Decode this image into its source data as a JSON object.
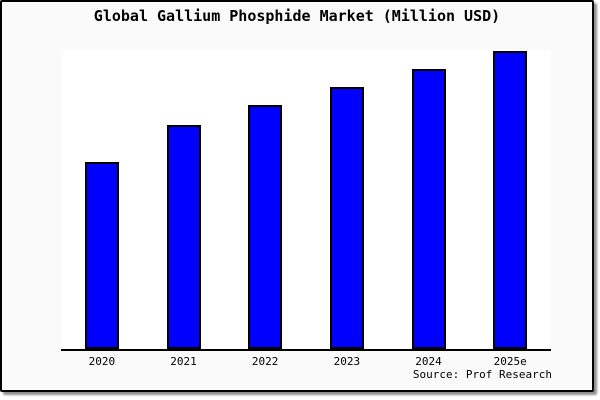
{
  "figure": {
    "title": "Global Gallium Phosphide Market (Million USD)",
    "source": "Source: Prof Research"
  },
  "chart_data": {
    "type": "bar",
    "title": "Global Gallium Phosphide Market (Million USD)",
    "categories": [
      "2020",
      "2021",
      "2022",
      "2023",
      "2024",
      "2025e"
    ],
    "values": [
      63,
      75.3,
      82,
      88,
      94,
      100
    ],
    "values_note": "No y-axis ticks, gridlines or data labels are shown; values are relative bar heights normalized to the tallest bar (2025e) = 100.",
    "xlabel": "",
    "ylabel": "",
    "ylim": [
      0,
      100.5
    ],
    "grid": false,
    "legend": "none",
    "source": "Source: Prof Research",
    "colors": {
      "bar_fill": "#0000ff",
      "bar_edge": "#000000",
      "plot_background": "#ffffff",
      "figure_background": "#fafafa",
      "axis": "#000000",
      "text": "#000000"
    }
  }
}
